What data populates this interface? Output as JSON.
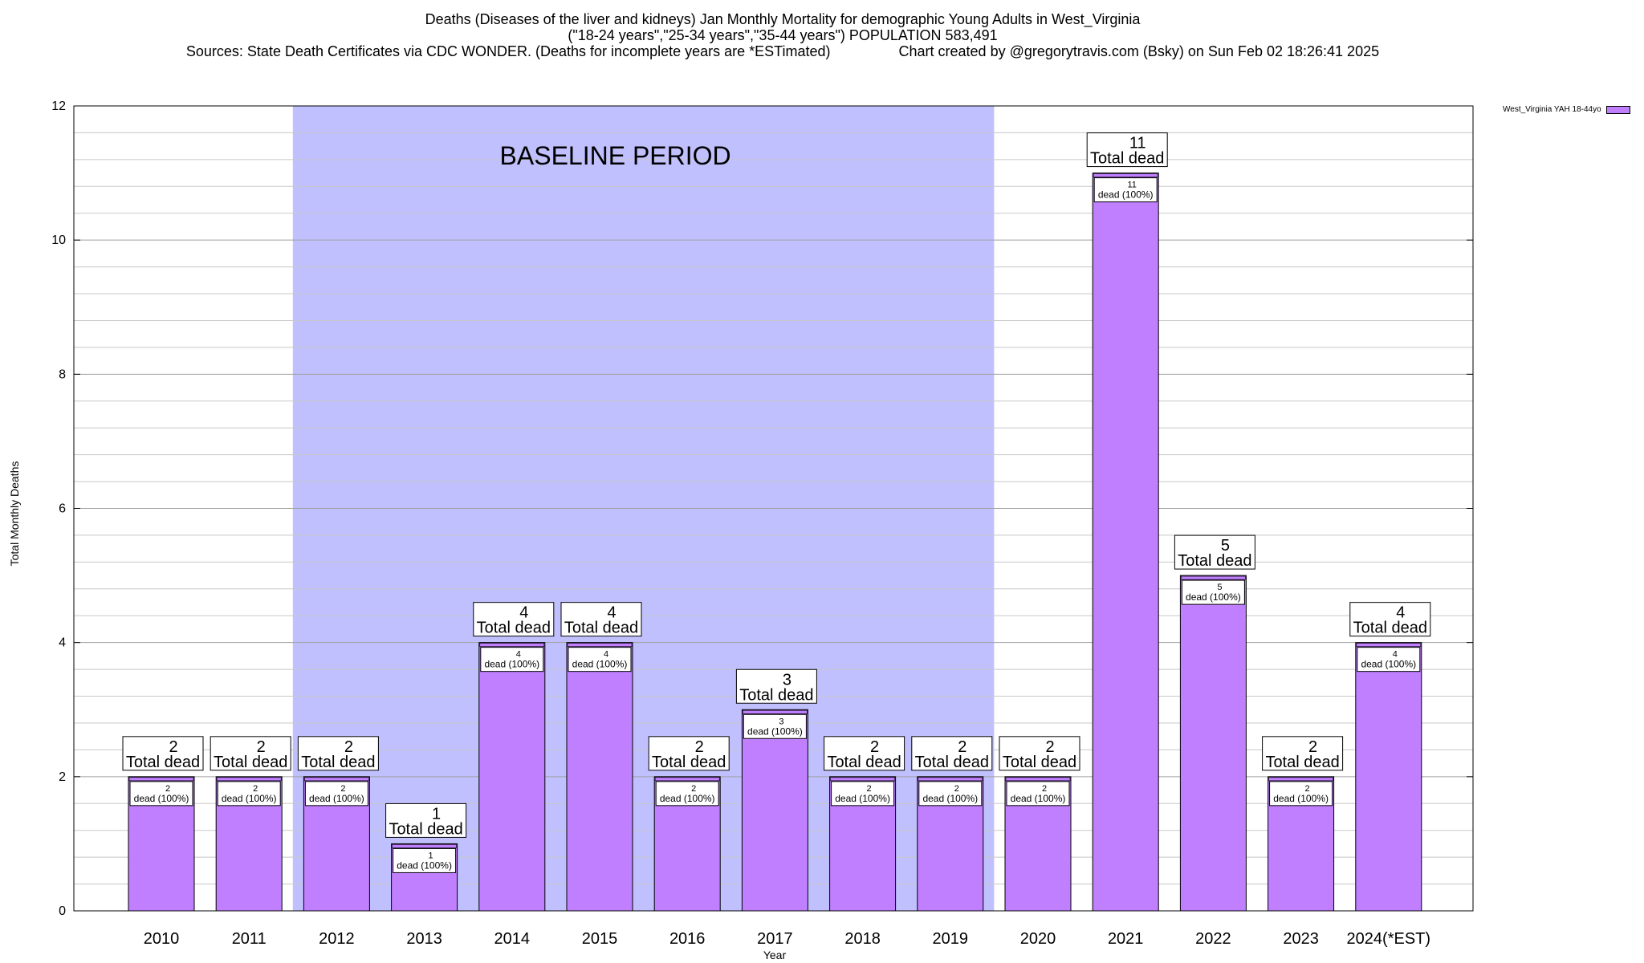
{
  "chart_data": {
    "type": "bar",
    "title_lines": [
      "Deaths (Diseases of the liver and kidneys) Jan Monthly Mortality for demographic Young Adults in West_Virginia",
      "(\"18-24 years\",\"25-34 years\",\"35-44 years\") POPULATION 583,491",
      "Sources: State Death Certificates via CDC WONDER. (Deaths for incomplete years are *ESTimated)                 Chart created by @gregorytravis.com (Bsky) on Sun Feb 02 18:26:41 2025"
    ],
    "xlabel": "Year",
    "ylabel": "Total Monthly Deaths",
    "ylim": [
      0,
      12
    ],
    "yticks": [
      0,
      2,
      4,
      6,
      8,
      10,
      12
    ],
    "grid": true,
    "legend_position": "top-right, outside plot",
    "baseline_label": "BASELINE PERIOD",
    "baseline_range": [
      "2012",
      "2019"
    ],
    "categories": [
      "2010",
      "2011",
      "2012",
      "2013",
      "2014",
      "2015",
      "2016",
      "2017",
      "2018",
      "2019",
      "2020",
      "2021",
      "2022",
      "2023",
      "2024(*EST)"
    ],
    "series": [
      {
        "name": "West_Virginia YAH 18-44yo",
        "color": "#bf7fff",
        "values": [
          2,
          2,
          2,
          1,
          4,
          4,
          2,
          3,
          2,
          2,
          2,
          11,
          5,
          2,
          4
        ]
      }
    ],
    "bar_top_labels": {
      "total_suffix": "Total dead",
      "inner_suffix": "dead (100%)"
    },
    "colors": {
      "bar": "#bf7fff",
      "baseline_shade": "#c0c0ff",
      "cap_stripe": "#bf7fff"
    }
  }
}
